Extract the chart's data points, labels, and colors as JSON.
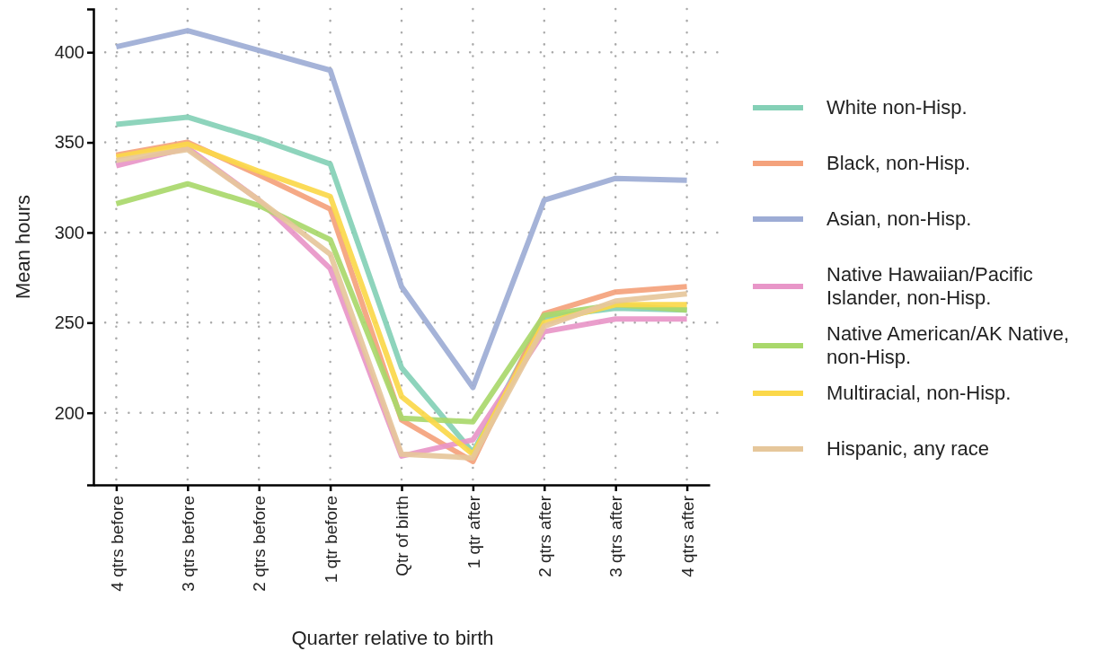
{
  "chart_data": {
    "type": "line",
    "xlabel": "Quarter relative to birth",
    "ylabel": "Mean hours",
    "categories": [
      "4 qtrs before",
      "3 qtrs before",
      "2 qtrs before",
      "1 qtr before",
      "Qtr of birth",
      "1 qtr after",
      "2 qtrs after",
      "3 qtrs after",
      "4 qtrs after"
    ],
    "ylim": [
      160,
      424
    ],
    "yticks": [
      200,
      250,
      300,
      350,
      400
    ],
    "grid": true,
    "legend": "right",
    "line_style": "solid",
    "marker": "none",
    "series": [
      {
        "name": "White non-Hisp.",
        "color": "#84d0b6",
        "values": [
          360,
          364,
          352,
          338,
          225,
          178,
          253,
          258,
          257
        ]
      },
      {
        "name": "Black, non-Hisp.",
        "color": "#f4a27c",
        "values": [
          343,
          350,
          332,
          313,
          196,
          173,
          255,
          267,
          270
        ]
      },
      {
        "name": "Asian, non-Hisp.",
        "color": "#9dacd5",
        "values": [
          403,
          412,
          401,
          390,
          270,
          214,
          318,
          330,
          329
        ]
      },
      {
        "name": "Native Hawaiian/Pacific Islander, non-Hisp.",
        "color": "#e896c8",
        "values": [
          337,
          347,
          318,
          280,
          176,
          185,
          245,
          252,
          252
        ]
      },
      {
        "name": "Native American/AK Native, non-Hisp.",
        "color": "#a9d86b",
        "values": [
          316,
          327,
          315,
          296,
          197,
          195,
          254,
          260,
          257
        ]
      },
      {
        "name": "Multiracial, non-Hisp.",
        "color": "#fbd84a",
        "values": [
          342,
          349,
          334,
          320,
          209,
          177,
          250,
          260,
          260
        ]
      },
      {
        "name": "Hispanic, any race",
        "color": "#e6c79b",
        "values": [
          340,
          346,
          318,
          288,
          177,
          175,
          248,
          262,
          266
        ]
      }
    ]
  }
}
